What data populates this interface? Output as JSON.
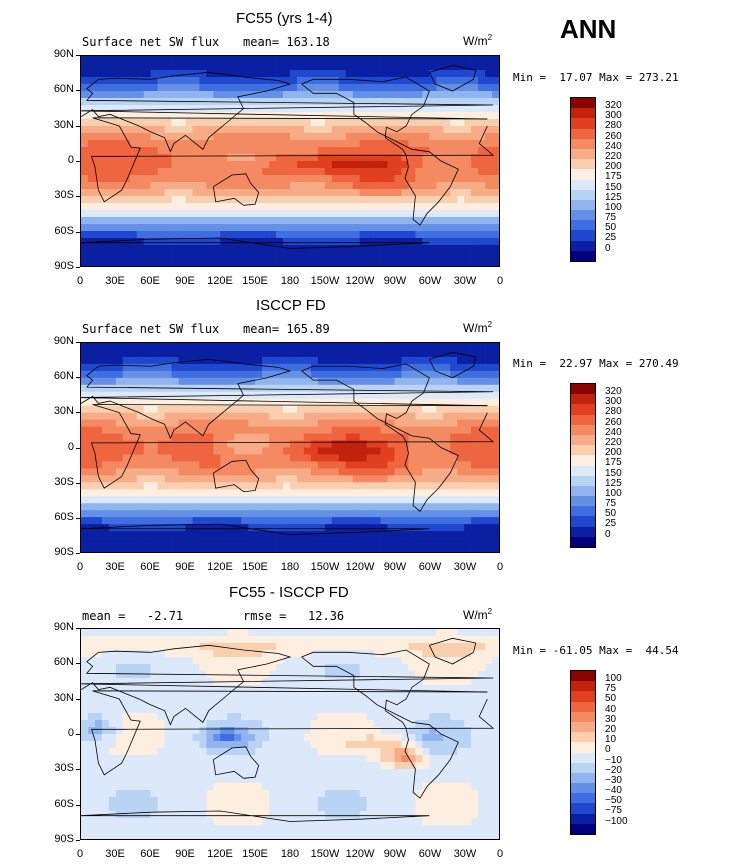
{
  "season": "ANN",
  "units": "W/m",
  "units_sup": "2",
  "lat_labels": [
    "90N",
    "60N",
    "30N",
    "0",
    "30S",
    "60S",
    "90S"
  ],
  "lon_labels": [
    "0",
    "30E",
    "60E",
    "90E",
    "120E",
    "150E",
    "180",
    "150W",
    "120W",
    "90W",
    "60W",
    "30W",
    "0"
  ],
  "panels": [
    {
      "title": "FC55 (yrs 1-4)",
      "subtitle_left": "Surface net SW flux",
      "subtitle_mid": "mean= 163.18",
      "minmax": "Min =  17.07 Max = 273.21",
      "kind": "abs",
      "levels": [
        "320",
        "300",
        "280",
        "260",
        "240",
        "220",
        "200",
        "175",
        "150",
        "125",
        "100",
        "75",
        "50",
        "25",
        "0"
      ]
    },
    {
      "title": "ISCCP FD",
      "subtitle_left": "Surface net SW flux",
      "subtitle_mid": "mean= 165.89",
      "minmax": "Min =  22.97 Max = 270.49",
      "kind": "abs",
      "levels": [
        "320",
        "300",
        "280",
        "260",
        "240",
        "220",
        "200",
        "175",
        "150",
        "125",
        "100",
        "75",
        "50",
        "25",
        "0"
      ]
    },
    {
      "title": "FC55 - ISCCP FD",
      "subtitle_left": "mean =   -2.71",
      "subtitle_mid": "rmse =   12.36",
      "minmax": "Min = -61.05 Max =  44.54",
      "kind": "diff",
      "levels": [
        "100",
        "75",
        "50",
        "40",
        "30",
        "20",
        "10",
        "0",
        "−10",
        "−20",
        "−30",
        "−40",
        "−50",
        "−75",
        "−100"
      ]
    }
  ],
  "colors": {
    "scale": [
      "#8b0000",
      "#c1220e",
      "#e0401f",
      "#ef6540",
      "#f38a62",
      "#f7ab86",
      "#f9cfb0",
      "#fdeee0",
      "#dbe9fb",
      "#b9d3f5",
      "#90b5ee",
      "#6490e6",
      "#3f6ee0",
      "#2048cf",
      "#0b1fa2",
      "#00007f"
    ]
  }
}
